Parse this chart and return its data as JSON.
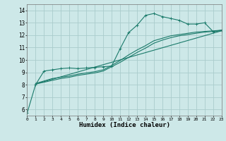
{
  "title": "",
  "xlabel": "Humidex (Indice chaleur)",
  "xlim": [
    0,
    23
  ],
  "ylim": [
    5.5,
    14.5
  ],
  "xticks": [
    0,
    1,
    2,
    3,
    4,
    5,
    6,
    7,
    8,
    9,
    10,
    11,
    12,
    13,
    14,
    15,
    16,
    17,
    18,
    19,
    20,
    21,
    22,
    23
  ],
  "yticks": [
    6,
    7,
    8,
    9,
    10,
    11,
    12,
    13,
    14
  ],
  "bg_color": "#cde8e8",
  "grid_color": "#aacccc",
  "line_color": "#1a7a6a",
  "line1_x": [
    0,
    1,
    2,
    3,
    4,
    5,
    6,
    7,
    8,
    9,
    10,
    11,
    12,
    13,
    14,
    15,
    16,
    17,
    18,
    19,
    20,
    21,
    22,
    23
  ],
  "line1_y": [
    5.7,
    8.0,
    9.1,
    9.2,
    9.3,
    9.35,
    9.3,
    9.35,
    9.4,
    9.45,
    9.5,
    10.9,
    12.2,
    12.8,
    13.6,
    13.75,
    13.5,
    13.35,
    13.2,
    12.9,
    12.9,
    13.0,
    12.3,
    12.4
  ],
  "line2_x": [
    1,
    2,
    3,
    4,
    5,
    6,
    7,
    8,
    9,
    10,
    11,
    12,
    13,
    14,
    15,
    16,
    17,
    18,
    19,
    20,
    21,
    22,
    23
  ],
  "line2_y": [
    8.1,
    8.3,
    8.5,
    8.6,
    8.7,
    8.85,
    8.95,
    9.05,
    9.2,
    9.55,
    9.95,
    10.4,
    10.8,
    11.15,
    11.55,
    11.75,
    11.95,
    12.05,
    12.15,
    12.25,
    12.3,
    12.35,
    12.4
  ],
  "line3_x": [
    1,
    23
  ],
  "line3_y": [
    8.05,
    12.35
  ],
  "line4_x": [
    1,
    2,
    3,
    4,
    5,
    6,
    7,
    8,
    9,
    10,
    11,
    12,
    13,
    14,
    15,
    16,
    17,
    18,
    19,
    20,
    21,
    22,
    23
  ],
  "line4_y": [
    8.05,
    8.2,
    8.35,
    8.5,
    8.6,
    8.75,
    8.85,
    8.95,
    9.1,
    9.45,
    9.8,
    10.2,
    10.6,
    10.95,
    11.35,
    11.6,
    11.8,
    11.95,
    12.05,
    12.15,
    12.25,
    12.3,
    12.35
  ]
}
